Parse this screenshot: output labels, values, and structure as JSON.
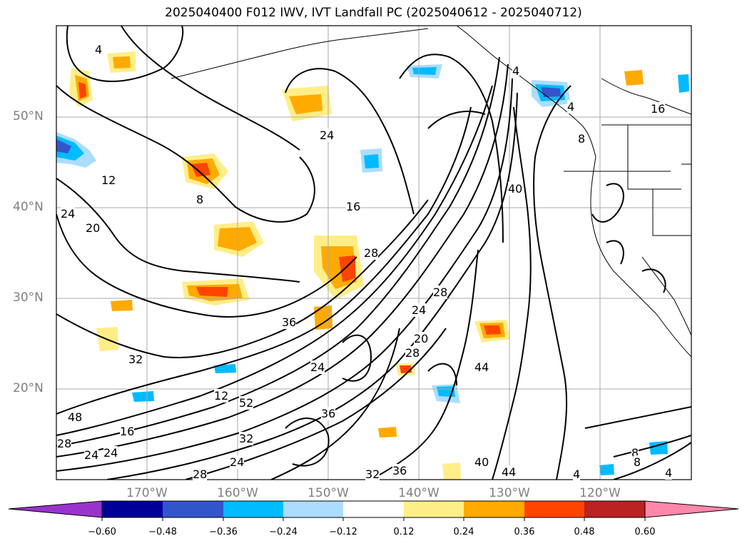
{
  "title": "2025040400 F012 IWV, IVT Landfall PC (2025040612 - 2025040712)",
  "lat_labels": [
    "50°N",
    "40°N",
    "30°N",
    "20°N"
  ],
  "lon_labels": [
    "170°W",
    "160°W",
    "150°W",
    "140°W",
    "130°W",
    "120°W"
  ],
  "colorbar": {
    "ticks": [
      "−0.60",
      "−0.48",
      "−0.36",
      "−0.24",
      "−0.12",
      "0.12",
      "0.24",
      "0.36",
      "0.48",
      "0.60"
    ],
    "colors": [
      "#9933cc",
      "#000099",
      "#3355cc",
      "#00bbff",
      "#aaddff",
      "#ffffff",
      "#ffee88",
      "#ffaa00",
      "#ff4400",
      "#bb2222",
      "#ff88aa"
    ]
  },
  "contour_labels": [
    "4",
    "12",
    "8",
    "24",
    "20",
    "16",
    "28",
    "32",
    "36",
    "40",
    "44",
    "48",
    "52",
    "12",
    "16",
    "28",
    "24",
    "24",
    "24",
    "28",
    "20",
    "24",
    "28",
    "24",
    "36",
    "32",
    "24",
    "28",
    "32",
    "36",
    "40",
    "44",
    "4",
    "8",
    "8",
    "4",
    "4",
    "4",
    "8",
    "16"
  ]
}
